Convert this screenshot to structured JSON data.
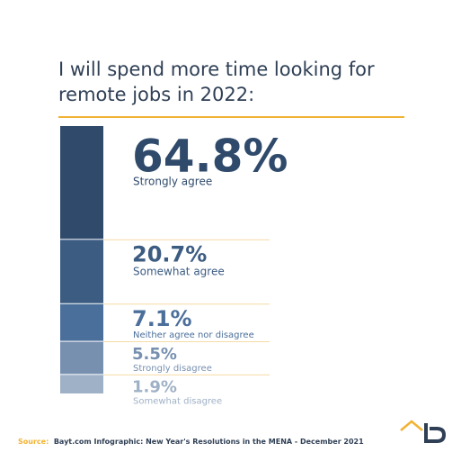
{
  "chart_data": {
    "type": "stacked-bar",
    "title": "I will spend more time looking for remote jobs in 2022:",
    "categories": [
      "Strongly agree",
      "Somewhat agree",
      "Neither agree nor disagree",
      "Strongly disagree",
      "Somewhat disagree"
    ],
    "values": [
      64.8,
      20.7,
      7.1,
      5.5,
      1.9
    ],
    "value_labels": [
      "64.8%",
      "20.7%",
      "7.1%",
      "5.5%",
      "1.9%"
    ],
    "colors": [
      "#2f4a6b",
      "#3c5c82",
      "#4b6f9b",
      "#7790b0",
      "#9fb1c6"
    ],
    "source_label": "Source:",
    "source": "Bayt.com Infographic: New Year's Resolutions in the MENA - December 2021"
  }
}
